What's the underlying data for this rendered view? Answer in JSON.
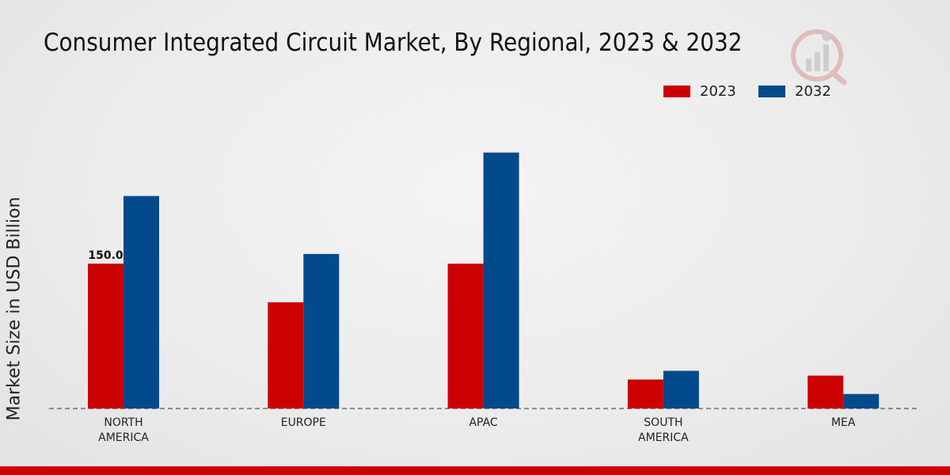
{
  "chart_data": {
    "type": "bar",
    "title": "Consumer Integrated Circuit Market, By Regional, 2023 & 2032",
    "xlabel": "",
    "ylabel": "Market Size in USD Billion",
    "categories": [
      "NORTH\nAMERICA",
      "EUROPE",
      "APAC",
      "SOUTH\nAMERICA",
      "MEA"
    ],
    "series": [
      {
        "name": "2023",
        "color": "#cc0000",
        "values": [
          150.0,
          110.0,
          150.0,
          30.0,
          34.0
        ]
      },
      {
        "name": "2032",
        "color": "#034a8c",
        "values": [
          220.0,
          160.0,
          265.0,
          39.0,
          15.0
        ]
      }
    ],
    "data_labels": [
      {
        "series": 0,
        "index": 0,
        "text": "150.0"
      }
    ],
    "ylim": [
      0,
      300
    ],
    "grid": false,
    "legend_position": "top-right"
  }
}
